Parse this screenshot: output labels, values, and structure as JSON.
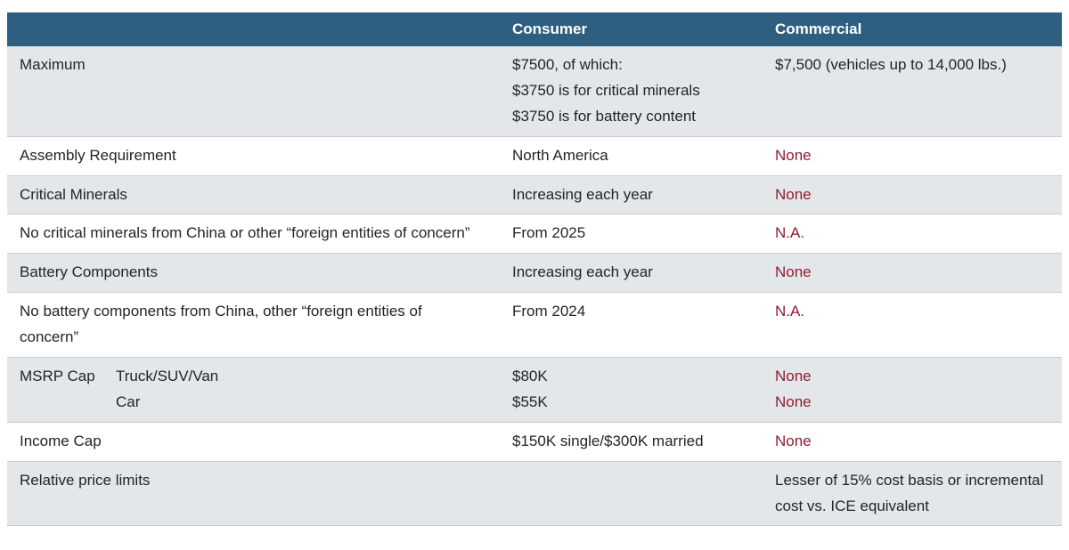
{
  "colors": {
    "header-bg": "#2e5f80",
    "header-text": "#ffffff",
    "row-alt-bg": "#e4e7e9",
    "row-bg": "#ffffff",
    "border": "#c9cdd1",
    "text": "#212529",
    "accent-red": "#8e1c33",
    "page-bg": "#ffffff"
  },
  "table": {
    "columns": [
      "",
      "Consumer",
      "Commercial"
    ],
    "rows": [
      {
        "label": "Maximum",
        "consumer": "$7500, of which:\n$3750 is for critical minerals\n$3750 is for battery content",
        "commercial": "$7,500 (vehicles up to 14,000 lbs.)"
      },
      {
        "label": "Assembly Requirement",
        "consumer": "North America",
        "commercial": "None"
      },
      {
        "label": "Critical Minerals",
        "consumer": "Increasing each year",
        "commercial": "None"
      },
      {
        "label": "No critical minerals from China or other “foreign entities of concern”",
        "consumer": "From 2025",
        "commercial": "N.A."
      },
      {
        "label": "Battery Components",
        "consumer": "Increasing each year",
        "commercial": "None"
      },
      {
        "label": "No battery components from China, other “foreign entities of concern”",
        "consumer": "From 2024",
        "commercial": "N.A."
      },
      {
        "label": "MSRP Cap",
        "sublabel": "Truck/SUV/Van\nCar",
        "consumer": "$80K\n$55K",
        "commercial": "None\nNone"
      },
      {
        "label": "Income Cap",
        "consumer": "$150K single/$300K married",
        "commercial": "None"
      },
      {
        "label": "Relative price limits",
        "consumer": "",
        "commercial": "Lesser of 15% cost basis or incremental cost vs. ICE equivalent"
      }
    ]
  }
}
